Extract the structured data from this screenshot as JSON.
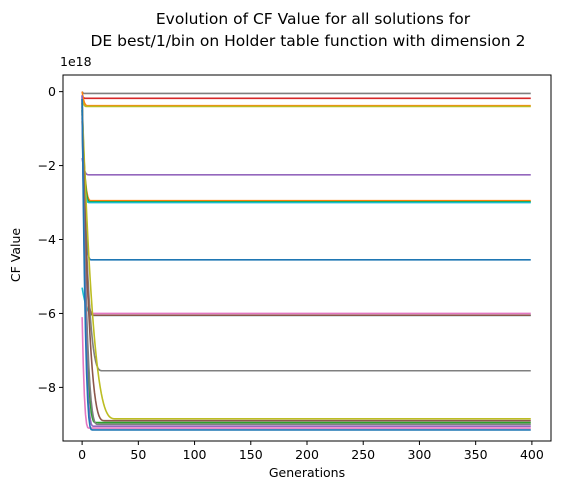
{
  "chart_data": {
    "type": "line",
    "title_lines": [
      "Evolution of CF Value for all solutions for",
      "DE best/1/bin on Holder table function with dimension 2"
    ],
    "xlabel": "Generations",
    "ylabel": "CF Value",
    "y_offset_label": "1e18",
    "xlim": [
      -17,
      417
    ],
    "ylim": [
      -9.45,
      0.45
    ],
    "xticks": [
      0,
      50,
      100,
      150,
      200,
      250,
      300,
      350,
      400
    ],
    "xtick_labels": [
      "0",
      "50",
      "100",
      "150",
      "200",
      "250",
      "300",
      "350",
      "400"
    ],
    "yticks": [
      0,
      -2,
      -4,
      -6,
      -8
    ],
    "ytick_labels": [
      "0",
      "−2",
      "−4",
      "−6",
      "−8"
    ],
    "grid": false,
    "legend": "none",
    "x_range": [
      0,
      399
    ],
    "series": [
      {
        "color": "#7f7f7f",
        "start": 0.0,
        "final": -0.05,
        "drop": 2
      },
      {
        "color": "#d62728",
        "start": -0.1,
        "final": -0.18,
        "drop": 3
      },
      {
        "color": "#ff7f0e",
        "start": 0.0,
        "final": -0.38,
        "drop": 5
      },
      {
        "color": "#bcbd22",
        "start": -0.2,
        "final": -0.4,
        "drop": 4
      },
      {
        "color": "#9467bd",
        "start": -1.8,
        "final": -2.25,
        "drop": 6
      },
      {
        "color": "#ff7f0e",
        "start": -0.8,
        "final": -2.95,
        "drop": 8
      },
      {
        "color": "#2ca02c",
        "start": -0.3,
        "final": -2.98,
        "drop": 7
      },
      {
        "color": "#17becf",
        "start": -0.5,
        "final": -3.0,
        "drop": 6
      },
      {
        "color": "#1f77b4",
        "start": -0.1,
        "final": -4.55,
        "drop": 8
      },
      {
        "color": "#e377c2",
        "start": -0.4,
        "final": -6.0,
        "drop": 9
      },
      {
        "color": "#17becf",
        "start": -5.3,
        "final": -6.05,
        "drop": 12
      },
      {
        "color": "#8c564b",
        "start": -0.2,
        "final": -6.05,
        "drop": 10
      },
      {
        "color": "#7f7f7f",
        "start": -0.6,
        "final": -7.55,
        "drop": 18
      },
      {
        "color": "#bcbd22",
        "start": -0.3,
        "final": -8.85,
        "drop": 30
      },
      {
        "color": "#8c564b",
        "start": -0.5,
        "final": -8.9,
        "drop": 20
      },
      {
        "color": "#2ca02c",
        "start": -0.4,
        "final": -8.95,
        "drop": 12
      },
      {
        "color": "#7f7f7f",
        "start": -0.7,
        "final": -9.0,
        "drop": 14
      },
      {
        "color": "#9467bd",
        "start": -0.1,
        "final": -9.05,
        "drop": 10
      },
      {
        "color": "#e377c2",
        "start": -6.1,
        "final": -9.1,
        "drop": 6
      },
      {
        "color": "#1f77b4",
        "start": -0.2,
        "final": -9.15,
        "drop": 9
      }
    ]
  }
}
